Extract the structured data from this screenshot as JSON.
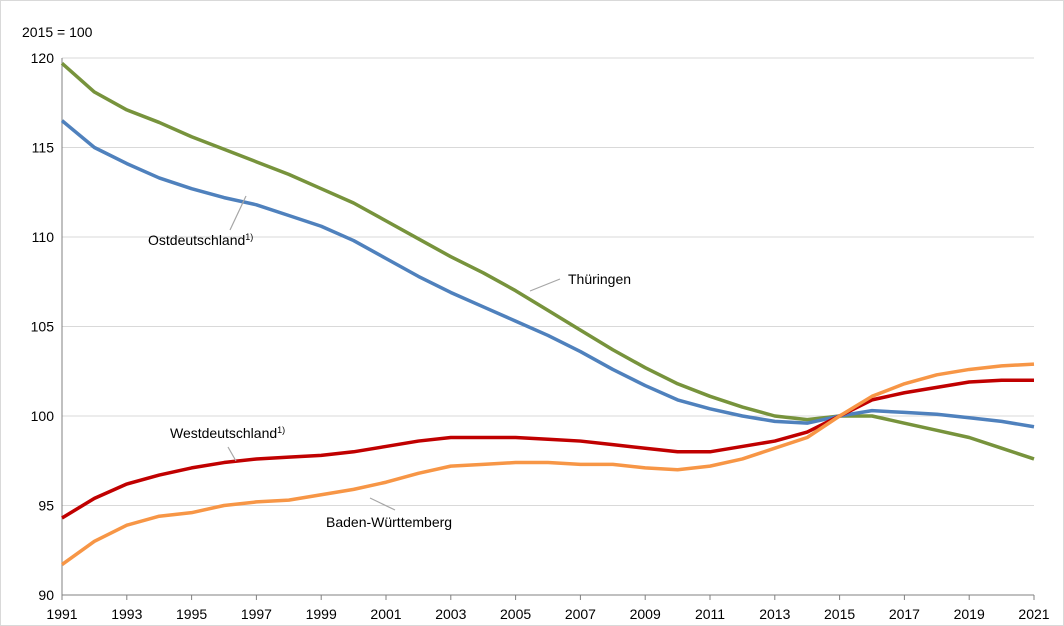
{
  "chart_data": {
    "type": "line",
    "y_label": "2015 = 100",
    "x": [
      1991,
      1992,
      1993,
      1994,
      1995,
      1996,
      1997,
      1998,
      1999,
      2000,
      2001,
      2002,
      2003,
      2004,
      2005,
      2006,
      2007,
      2008,
      2009,
      2010,
      2011,
      2012,
      2013,
      2014,
      2015,
      2016,
      2017,
      2018,
      2019,
      2020,
      2021
    ],
    "xlim": [
      1991,
      2021
    ],
    "xticks": [
      1991,
      1993,
      1995,
      1997,
      1999,
      2001,
      2003,
      2005,
      2007,
      2009,
      2011,
      2013,
      2015,
      2017,
      2019,
      2021
    ],
    "ylim": [
      90,
      120
    ],
    "yticks": [
      90,
      95,
      100,
      105,
      110,
      115,
      120
    ],
    "grid": true,
    "series": [
      {
        "name": "Thüringen",
        "color": "#77933c",
        "values": [
          119.7,
          118.1,
          117.1,
          116.4,
          115.6,
          114.9,
          114.2,
          113.5,
          112.7,
          111.9,
          110.9,
          109.9,
          108.9,
          108.0,
          107.0,
          105.9,
          104.8,
          103.7,
          102.7,
          101.8,
          101.1,
          100.5,
          100.0,
          99.8,
          100.0,
          100.0,
          99.6,
          99.2,
          98.8,
          98.2,
          97.6
        ]
      },
      {
        "name": "Ostdeutschland",
        "footnote": "1)",
        "color": "#4f81bd",
        "values": [
          116.5,
          115.0,
          114.1,
          113.3,
          112.7,
          112.2,
          111.8,
          111.2,
          110.6,
          109.8,
          108.8,
          107.8,
          106.9,
          106.1,
          105.3,
          104.5,
          103.6,
          102.6,
          101.7,
          100.9,
          100.4,
          100.0,
          99.7,
          99.6,
          100.0,
          100.3,
          100.2,
          100.1,
          99.9,
          99.7,
          99.4
        ]
      },
      {
        "name": "Westdeutschland",
        "footnote": "1)",
        "color": "#c00000",
        "values": [
          94.3,
          95.4,
          96.2,
          96.7,
          97.1,
          97.4,
          97.6,
          97.7,
          97.8,
          98.0,
          98.3,
          98.6,
          98.8,
          98.8,
          98.8,
          98.7,
          98.6,
          98.4,
          98.2,
          98.0,
          98.0,
          98.3,
          98.6,
          99.1,
          100.0,
          100.9,
          101.3,
          101.6,
          101.9,
          102.0,
          102.0
        ]
      },
      {
        "name": "Baden-Württemberg",
        "color": "#f79646",
        "values": [
          91.7,
          93.0,
          93.9,
          94.4,
          94.6,
          95.0,
          95.2,
          95.3,
          95.6,
          95.9,
          96.3,
          96.8,
          97.2,
          97.3,
          97.4,
          97.4,
          97.3,
          97.3,
          97.1,
          97.0,
          97.2,
          97.6,
          98.2,
          98.8,
          100.0,
          101.1,
          101.8,
          102.3,
          102.6,
          102.8,
          102.9
        ]
      }
    ]
  }
}
